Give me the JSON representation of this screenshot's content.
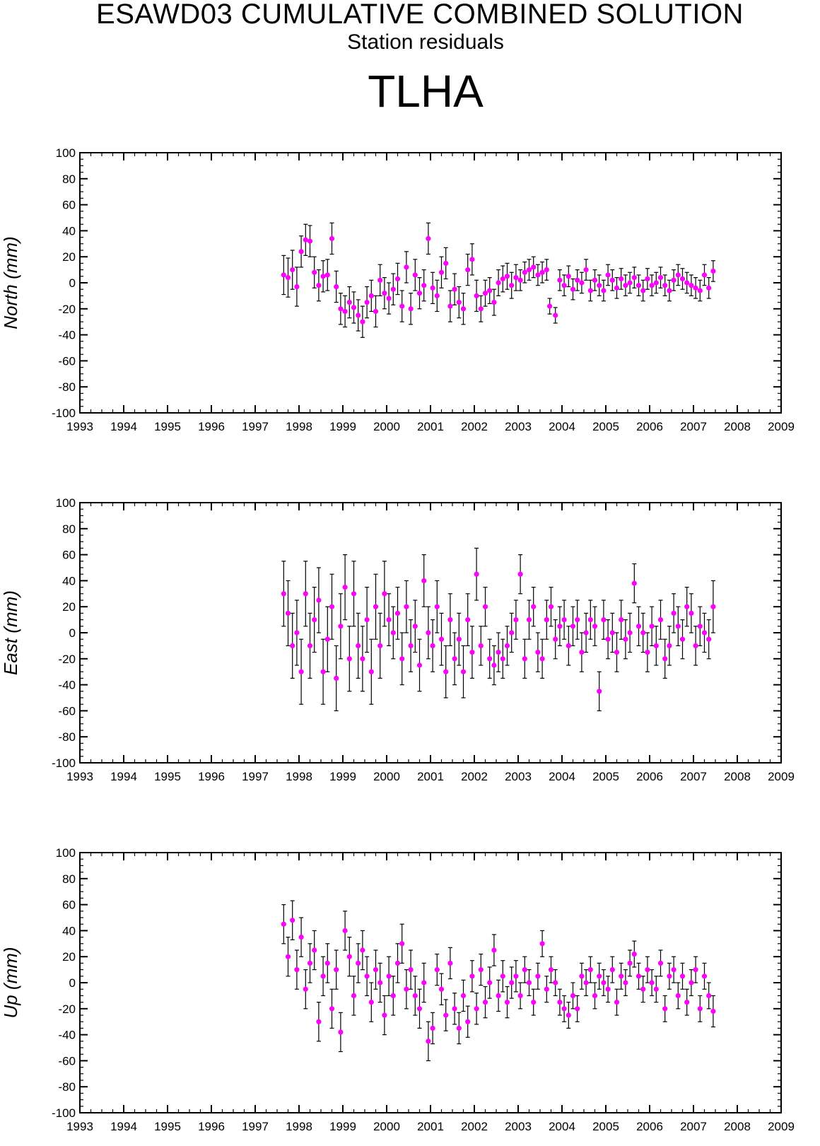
{
  "header": {
    "title": "ESAWD03 CUMULATIVE COMBINED SOLUTION",
    "subtitle": "Station residuals",
    "station": "TLHA"
  },
  "colors": {
    "marker": "#ff00ff",
    "error_bar": "#000000",
    "axes": "#000000"
  },
  "chart_data": [
    {
      "type": "scatter",
      "title": "",
      "xlabel": "",
      "ylabel": "North (mm)",
      "xlim": [
        1993,
        2009
      ],
      "ylim": [
        -100,
        100
      ],
      "x_ticks": [
        "1993",
        "1994",
        "1995",
        "1996",
        "1997",
        "1998",
        "1999",
        "2000",
        "2001",
        "2002",
        "2003",
        "2004",
        "2005",
        "2006",
        "2007",
        "2008",
        "2009"
      ],
      "y_ticks": [
        "100",
        "80",
        "60",
        "40",
        "20",
        "0",
        "-20",
        "-40",
        "-60",
        "-80",
        "-100"
      ],
      "error_bars": true,
      "series": [
        {
          "x": [
            1997.65,
            1997.75,
            1997.85,
            1997.95,
            1998.05,
            1998.15,
            1998.25,
            1998.35,
            1998.45,
            1998.55,
            1998.65,
            1998.75,
            1998.85,
            1998.95,
            1999.05,
            1999.15,
            1999.25,
            1999.35,
            1999.45,
            1999.55,
            1999.65,
            1999.75,
            1999.85,
            1999.95,
            2000.05,
            2000.15,
            2000.25,
            2000.35,
            2000.45,
            2000.55,
            2000.65,
            2000.75,
            2000.85,
            2000.95,
            2001.05,
            2001.15,
            2001.25,
            2001.35,
            2001.45,
            2001.55,
            2001.65,
            2001.75,
            2001.85,
            2001.95,
            2002.05,
            2002.15,
            2002.25,
            2002.35,
            2002.45,
            2002.55,
            2002.65,
            2002.75,
            2002.85,
            2002.95,
            2003.05,
            2003.15,
            2003.25,
            2003.35,
            2003.45,
            2003.55,
            2003.65,
            2003.72,
            2003.85,
            2003.95,
            2004.05,
            2004.15,
            2004.25,
            2004.35,
            2004.45,
            2004.55,
            2004.65,
            2004.75,
            2004.85,
            2004.95,
            2005.05,
            2005.15,
            2005.25,
            2005.35,
            2005.45,
            2005.55,
            2005.65,
            2005.75,
            2005.85,
            2005.95,
            2006.05,
            2006.15,
            2006.25,
            2006.35,
            2006.45,
            2006.55,
            2006.65,
            2006.75,
            2006.85,
            2006.95,
            2007.05,
            2007.15,
            2007.25,
            2007.35,
            2007.45
          ],
          "y": [
            6,
            4,
            10,
            -3,
            24,
            33,
            32,
            8,
            -2,
            5,
            6,
            34,
            -3,
            -20,
            -22,
            -15,
            -19,
            -25,
            -30,
            -15,
            -10,
            -22,
            2,
            -8,
            -12,
            -5,
            3,
            -18,
            12,
            -20,
            6,
            -8,
            -2,
            34,
            -4,
            -10,
            8,
            15,
            -18,
            -5,
            -15,
            -20,
            10,
            18,
            -10,
            -20,
            -8,
            -6,
            -15,
            0,
            3,
            5,
            -2,
            4,
            2,
            8,
            10,
            12,
            6,
            8,
            10,
            -18,
            -25,
            2,
            -2,
            5,
            -5,
            2,
            0,
            10,
            -6,
            2,
            -2,
            -6,
            6,
            2,
            -4,
            3,
            -2,
            0,
            4,
            -2,
            -6,
            3,
            -2,
            0,
            4,
            -2,
            -6,
            2,
            6,
            3,
            0,
            -2,
            -4,
            -6,
            6,
            -4,
            9
          ],
          "err": [
            15,
            15,
            15,
            15,
            12,
            12,
            12,
            12,
            12,
            12,
            12,
            12,
            12,
            12,
            12,
            12,
            12,
            12,
            12,
            12,
            12,
            12,
            12,
            12,
            12,
            12,
            12,
            12,
            12,
            12,
            12,
            12,
            12,
            12,
            12,
            12,
            12,
            12,
            12,
            12,
            12,
            12,
            12,
            12,
            12,
            10,
            10,
            10,
            10,
            10,
            10,
            10,
            10,
            10,
            8,
            8,
            8,
            8,
            8,
            8,
            8,
            6,
            6,
            8,
            8,
            8,
            8,
            8,
            8,
            8,
            8,
            8,
            8,
            8,
            8,
            8,
            8,
            8,
            8,
            8,
            8,
            8,
            8,
            8,
            8,
            8,
            8,
            8,
            8,
            8,
            8,
            8,
            8,
            8,
            8,
            8,
            8,
            8,
            8
          ]
        }
      ]
    },
    {
      "type": "scatter",
      "title": "",
      "xlabel": "",
      "ylabel": "East (mm)",
      "xlim": [
        1993,
        2009
      ],
      "ylim": [
        -100,
        100
      ],
      "x_ticks": [
        "1993",
        "1994",
        "1995",
        "1996",
        "1997",
        "1998",
        "1999",
        "2000",
        "2001",
        "2002",
        "2003",
        "2004",
        "2005",
        "2006",
        "2007",
        "2008",
        "2009"
      ],
      "y_ticks": [
        "100",
        "80",
        "60",
        "40",
        "20",
        "0",
        "-20",
        "-40",
        "-60",
        "-80",
        "-100"
      ],
      "error_bars": true,
      "series": [
        {
          "x": [
            1997.65,
            1997.75,
            1997.85,
            1997.95,
            1998.05,
            1998.15,
            1998.25,
            1998.35,
            1998.45,
            1998.55,
            1998.65,
            1998.75,
            1998.85,
            1998.95,
            1999.05,
            1999.15,
            1999.25,
            1999.35,
            1999.45,
            1999.55,
            1999.65,
            1999.75,
            1999.85,
            1999.95,
            2000.05,
            2000.15,
            2000.25,
            2000.35,
            2000.45,
            2000.55,
            2000.65,
            2000.75,
            2000.85,
            2000.95,
            2001.05,
            2001.15,
            2001.25,
            2001.35,
            2001.45,
            2001.55,
            2001.65,
            2001.75,
            2001.85,
            2001.95,
            2002.05,
            2002.15,
            2002.25,
            2002.35,
            2002.45,
            2002.55,
            2002.65,
            2002.75,
            2002.85,
            2002.95,
            2003.05,
            2003.15,
            2003.25,
            2003.35,
            2003.45,
            2003.55,
            2003.65,
            2003.75,
            2003.85,
            2003.95,
            2004.05,
            2004.15,
            2004.25,
            2004.35,
            2004.45,
            2004.55,
            2004.65,
            2004.75,
            2004.85,
            2004.95,
            2005.05,
            2005.15,
            2005.25,
            2005.35,
            2005.45,
            2005.55,
            2005.65,
            2005.75,
            2005.85,
            2005.95,
            2006.05,
            2006.15,
            2006.25,
            2006.35,
            2006.45,
            2006.55,
            2006.65,
            2006.75,
            2006.85,
            2006.95,
            2007.05,
            2007.15,
            2007.25,
            2007.35,
            2007.45
          ],
          "y": [
            30,
            15,
            -10,
            0,
            -30,
            30,
            -10,
            10,
            25,
            -30,
            -5,
            20,
            -35,
            5,
            35,
            -20,
            30,
            -10,
            -20,
            10,
            -30,
            20,
            -10,
            30,
            10,
            0,
            15,
            -20,
            20,
            -10,
            5,
            -25,
            40,
            0,
            -10,
            20,
            -5,
            -30,
            10,
            -20,
            -5,
            -30,
            10,
            -15,
            45,
            -10,
            20,
            -20,
            -25,
            -15,
            -20,
            -10,
            0,
            10,
            45,
            -20,
            10,
            20,
            -15,
            -20,
            10,
            20,
            -5,
            5,
            10,
            -10,
            5,
            10,
            -15,
            0,
            10,
            5,
            -45,
            10,
            -5,
            0,
            -15,
            10,
            -5,
            0,
            38,
            5,
            0,
            -15,
            5,
            -10,
            10,
            -20,
            -10,
            15,
            5,
            -5,
            20,
            15,
            -10,
            5,
            0,
            -5,
            20
          ],
          "err": [
            25,
            25,
            25,
            25,
            25,
            25,
            25,
            25,
            25,
            25,
            25,
            25,
            25,
            25,
            25,
            25,
            25,
            25,
            25,
            25,
            25,
            25,
            25,
            25,
            20,
            20,
            20,
            20,
            20,
            20,
            20,
            20,
            20,
            20,
            20,
            20,
            20,
            20,
            20,
            20,
            20,
            20,
            20,
            20,
            20,
            15,
            15,
            15,
            15,
            15,
            15,
            15,
            15,
            15,
            15,
            15,
            15,
            15,
            15,
            15,
            15,
            15,
            15,
            15,
            15,
            15,
            15,
            15,
            15,
            15,
            15,
            15,
            15,
            15,
            15,
            15,
            15,
            15,
            15,
            15,
            15,
            15,
            15,
            15,
            15,
            15,
            15,
            15,
            15,
            15,
            15,
            15,
            15,
            15,
            15,
            15,
            15,
            15,
            20
          ]
        }
      ]
    },
    {
      "type": "scatter",
      "title": "",
      "xlabel": "",
      "ylabel": "Up (mm)",
      "xlim": [
        1993,
        2009
      ],
      "ylim": [
        -100,
        100
      ],
      "x_ticks": [
        "1993",
        "1994",
        "1995",
        "1996",
        "1997",
        "1998",
        "1999",
        "2000",
        "2001",
        "2002",
        "2003",
        "2004",
        "2005",
        "2006",
        "2007",
        "2008",
        "2009"
      ],
      "y_ticks": [
        "100",
        "80",
        "60",
        "40",
        "20",
        "0",
        "-20",
        "-40",
        "-60",
        "-80",
        "-100"
      ],
      "error_bars": true,
      "series": [
        {
          "x": [
            1997.65,
            1997.75,
            1997.85,
            1997.95,
            1998.05,
            1998.15,
            1998.25,
            1998.35,
            1998.45,
            1998.55,
            1998.65,
            1998.75,
            1998.85,
            1998.95,
            1999.05,
            1999.15,
            1999.25,
            1999.35,
            1999.45,
            1999.55,
            1999.65,
            1999.75,
            1999.85,
            1999.95,
            2000.05,
            2000.15,
            2000.25,
            2000.35,
            2000.45,
            2000.55,
            2000.65,
            2000.75,
            2000.85,
            2000.95,
            2001.05,
            2001.15,
            2001.25,
            2001.35,
            2001.45,
            2001.55,
            2001.65,
            2001.75,
            2001.85,
            2001.95,
            2002.05,
            2002.15,
            2002.25,
            2002.35,
            2002.45,
            2002.55,
            2002.65,
            2002.75,
            2002.85,
            2002.95,
            2003.05,
            2003.15,
            2003.25,
            2003.35,
            2003.45,
            2003.55,
            2003.65,
            2003.75,
            2003.85,
            2003.95,
            2004.05,
            2004.15,
            2004.25,
            2004.35,
            2004.45,
            2004.55,
            2004.65,
            2004.75,
            2004.85,
            2004.95,
            2005.05,
            2005.15,
            2005.25,
            2005.35,
            2005.45,
            2005.55,
            2005.65,
            2005.75,
            2005.85,
            2005.95,
            2006.05,
            2006.15,
            2006.25,
            2006.35,
            2006.45,
            2006.55,
            2006.65,
            2006.75,
            2006.85,
            2006.95,
            2007.05,
            2007.15,
            2007.25,
            2007.35,
            2007.45
          ],
          "y": [
            45,
            20,
            48,
            10,
            35,
            -5,
            15,
            25,
            -30,
            5,
            15,
            -20,
            10,
            -38,
            40,
            20,
            -10,
            15,
            25,
            5,
            -15,
            10,
            0,
            -25,
            5,
            -10,
            15,
            30,
            -5,
            10,
            -10,
            -20,
            0,
            -45,
            -35,
            10,
            -5,
            -25,
            15,
            -20,
            -35,
            -10,
            -30,
            5,
            -20,
            10,
            -15,
            0,
            25,
            -10,
            5,
            -15,
            0,
            5,
            -10,
            10,
            0,
            -15,
            5,
            30,
            -5,
            10,
            0,
            -15,
            -20,
            -25,
            -10,
            -20,
            5,
            0,
            10,
            -10,
            5,
            0,
            -5,
            10,
            -15,
            5,
            0,
            15,
            22,
            5,
            -5,
            10,
            0,
            -5,
            15,
            -20,
            5,
            10,
            -10,
            5,
            -15,
            0,
            10,
            -20,
            5,
            -10,
            -22
          ],
          "err": [
            15,
            15,
            15,
            15,
            15,
            15,
            15,
            15,
            15,
            15,
            15,
            15,
            15,
            15,
            15,
            15,
            15,
            15,
            15,
            15,
            15,
            15,
            15,
            15,
            15,
            15,
            15,
            15,
            15,
            15,
            15,
            15,
            15,
            15,
            12,
            12,
            12,
            12,
            12,
            12,
            12,
            12,
            12,
            12,
            12,
            12,
            12,
            12,
            12,
            12,
            12,
            12,
            12,
            12,
            10,
            10,
            10,
            10,
            10,
            10,
            10,
            10,
            10,
            10,
            10,
            10,
            10,
            10,
            10,
            10,
            10,
            10,
            10,
            10,
            10,
            10,
            10,
            10,
            10,
            10,
            10,
            10,
            10,
            10,
            10,
            10,
            10,
            10,
            10,
            10,
            10,
            10,
            10,
            10,
            10,
            10,
            10,
            10,
            12
          ]
        }
      ]
    }
  ]
}
